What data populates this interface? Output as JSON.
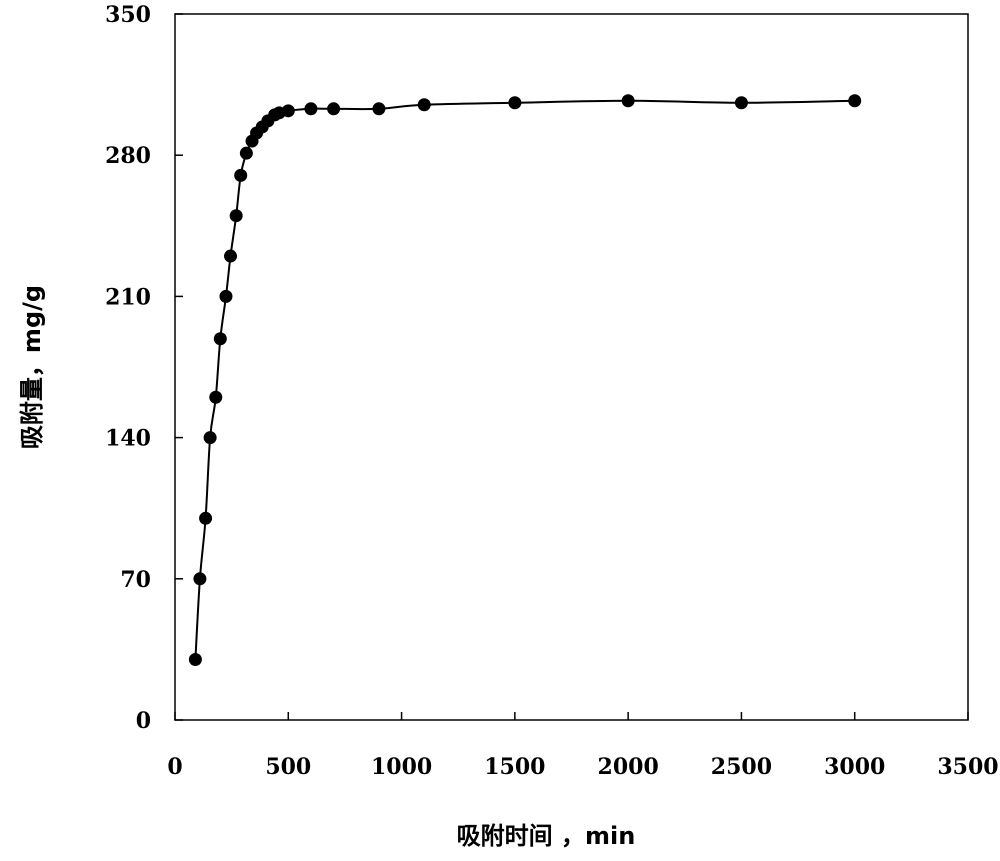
{
  "chart_data": {
    "type": "scatter",
    "title": "",
    "xlabel": "吸附时间 ，min",
    "ylabel": "吸附量，mg/g",
    "xlim": [
      0,
      3500
    ],
    "ylim": [
      0,
      350
    ],
    "x_ticks": [
      0,
      500,
      1000,
      1500,
      2000,
      2500,
      3000,
      3500
    ],
    "y_ticks": [
      0,
      70,
      140,
      210,
      280,
      350
    ],
    "x_tick_labels": [
      "0",
      "500",
      "1000",
      "1500",
      "2000",
      "2500",
      "3000",
      "3500"
    ],
    "y_tick_labels": [
      "0",
      "70",
      "140",
      "210",
      "280",
      "350"
    ],
    "grid": false,
    "marker": "filled-circle",
    "line": "smooth",
    "color": "#000000",
    "series": [
      {
        "x": [
          90,
          110,
          135,
          155,
          180,
          200,
          225,
          245,
          270,
          290,
          315,
          340,
          360,
          385,
          410,
          440,
          460,
          500,
          600,
          700,
          900,
          1100,
          1500,
          2000,
          2500,
          3000
        ],
        "y": [
          30,
          70,
          100,
          140,
          160,
          189,
          210,
          230,
          250,
          270,
          281,
          287,
          291,
          294,
          297,
          300,
          301,
          302,
          303,
          303,
          303,
          305,
          306,
          307,
          306,
          307
        ]
      }
    ]
  }
}
